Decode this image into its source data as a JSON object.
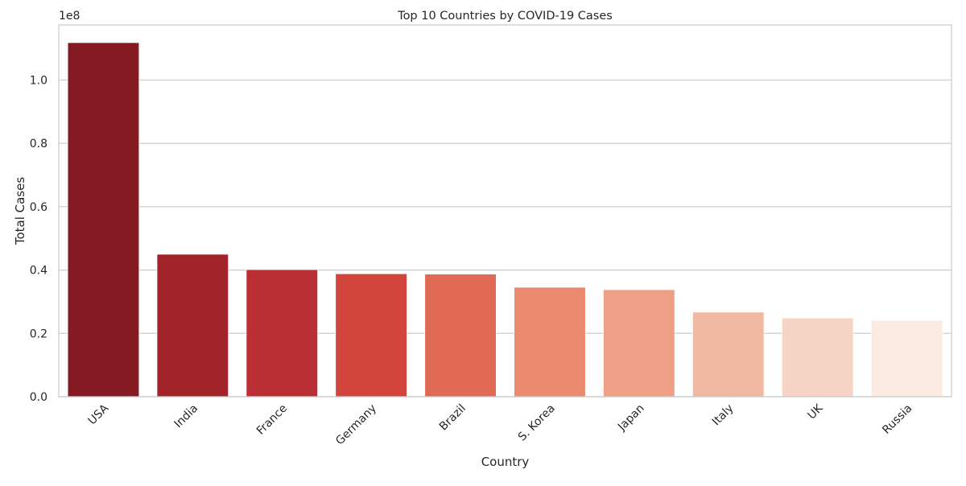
{
  "chart_data": {
    "type": "bar",
    "title": "Top 10 Countries by COVID-19 Cases",
    "xlabel": "Country",
    "ylabel": "Total Cases",
    "offset_label": "1e8",
    "categories": [
      "USA",
      "India",
      "France",
      "Germany",
      "Brazil",
      "S. Korea",
      "Japan",
      "Italy",
      "UK",
      "Russia"
    ],
    "values": [
      111820000,
      44990000,
      40140000,
      38830000,
      38720000,
      34570000,
      33800000,
      26720000,
      24850000,
      24120000
    ],
    "colors": [
      "#861a22",
      "#a2232a",
      "#ba2f33",
      "#d2453c",
      "#e16a55",
      "#eb8a6f",
      "#ee9f86",
      "#f1b9a2",
      "#f5d3c5",
      "#fcebe3"
    ],
    "ylim": [
      0,
      117400000
    ],
    "yticks": [
      {
        "value": 0,
        "label": "0.0"
      },
      {
        "value": 20000000,
        "label": "0.2"
      },
      {
        "value": 40000000,
        "label": "0.4"
      },
      {
        "value": 60000000,
        "label": "0.6"
      },
      {
        "value": 80000000,
        "label": "0.8"
      },
      {
        "value": 100000000,
        "label": "1.0"
      }
    ],
    "grid": "horizontal",
    "legend": "none"
  }
}
